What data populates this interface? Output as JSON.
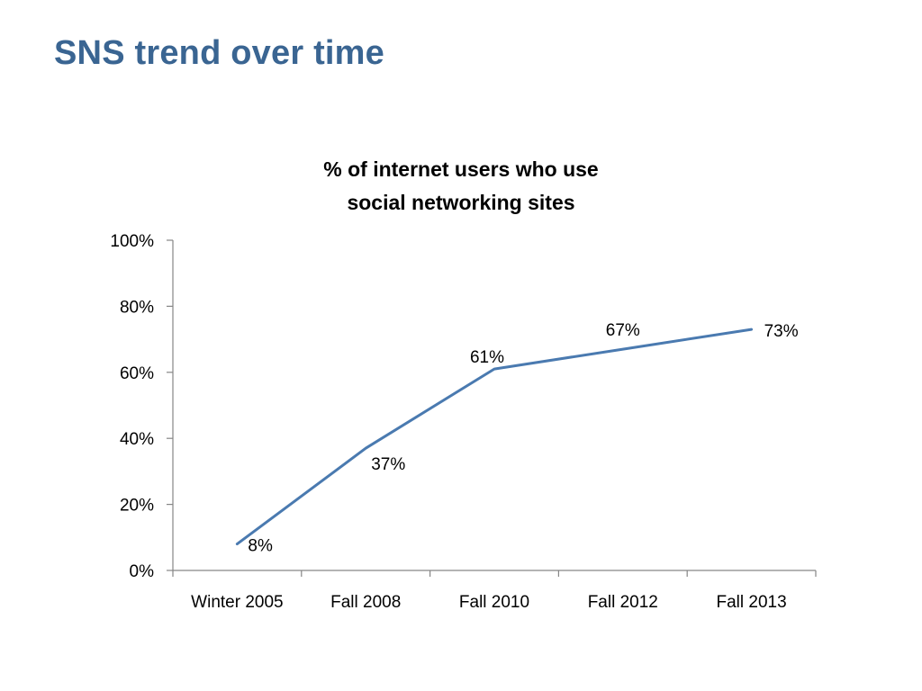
{
  "slide": {
    "title": "SNS trend over time"
  },
  "chart_data": {
    "type": "line",
    "title_lines": [
      "% of internet users who use",
      "social networking sites"
    ],
    "categories": [
      "Winter 2005",
      "Fall 2008",
      "Fall 2010",
      "Fall 2012",
      "Fall 2013"
    ],
    "series": [
      {
        "values": [
          8,
          37,
          61,
          67,
          73
        ],
        "labels": [
          "8%",
          "37%",
          "61%",
          "67%",
          "73%"
        ],
        "color": "#4a7ab0"
      }
    ],
    "y_ticks": [
      0,
      20,
      40,
      60,
      80,
      100
    ],
    "y_tick_labels": [
      "0%",
      "20%",
      "40%",
      "60%",
      "80%",
      "100%"
    ],
    "ylim": [
      0,
      100
    ],
    "xlabel": "",
    "ylabel": "",
    "grid": false,
    "legend": "none",
    "axis_color": "#868686"
  }
}
